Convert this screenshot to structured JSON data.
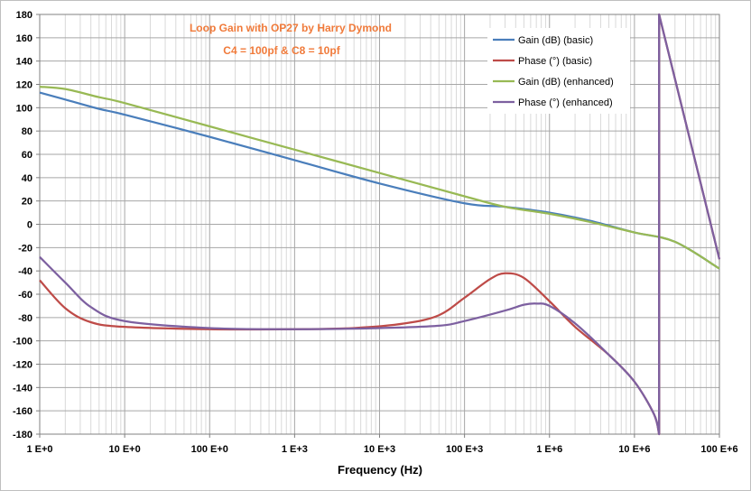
{
  "chart_data": {
    "type": "line",
    "title": "Loop Gain with OP27 by Harry Dymond",
    "subtitle": "C4 = 100pf & C8 = 10pf",
    "xlabel": "Frequency (Hz)",
    "ylabel": "",
    "xscale": "log",
    "xlim": [
      1,
      100000000
    ],
    "ylim": [
      -180,
      180
    ],
    "y_ticks": [
      180,
      160,
      140,
      120,
      100,
      80,
      60,
      40,
      20,
      0,
      -20,
      -40,
      -60,
      -80,
      -100,
      -120,
      -140,
      -160,
      -180
    ],
    "x_ticks": [
      {
        "value": 1,
        "label": "1 E+0"
      },
      {
        "value": 10,
        "label": "10 E+0"
      },
      {
        "value": 100,
        "label": "100 E+0"
      },
      {
        "value": 1000,
        "label": "1 E+3"
      },
      {
        "value": 10000,
        "label": "10 E+3"
      },
      {
        "value": 100000,
        "label": "100 E+3"
      },
      {
        "value": 1000000,
        "label": "1 E+6"
      },
      {
        "value": 10000000,
        "label": "10 E+6"
      },
      {
        "value": 100000000,
        "label": "100 E+6"
      }
    ],
    "grid": true,
    "legend_position": "top-right",
    "series": [
      {
        "name": "Gain (dB) (basic)",
        "color": "#4a7ebb",
        "points": [
          [
            1,
            113
          ],
          [
            2,
            107
          ],
          [
            5,
            99
          ],
          [
            10,
            94
          ],
          [
            100,
            75
          ],
          [
            1000,
            55
          ],
          [
            10000,
            35
          ],
          [
            100000,
            18
          ],
          [
            300000,
            15
          ],
          [
            1000000,
            10
          ],
          [
            3000000,
            3
          ],
          [
            10000000,
            -7
          ],
          [
            30000000,
            -15
          ],
          [
            100000000,
            -38
          ]
        ]
      },
      {
        "name": "Phase (°) (basic)",
        "color": "#be4b48",
        "points": [
          [
            1,
            -48
          ],
          [
            2,
            -72
          ],
          [
            4,
            -84
          ],
          [
            10,
            -88
          ],
          [
            100,
            -90
          ],
          [
            1000,
            -90
          ],
          [
            5000,
            -89
          ],
          [
            20000,
            -85
          ],
          [
            50000,
            -78
          ],
          [
            100000,
            -63
          ],
          [
            200000,
            -47
          ],
          [
            300000,
            -42
          ],
          [
            500000,
            -46
          ],
          [
            1000000,
            -66
          ],
          [
            2000000,
            -88
          ],
          [
            5000000,
            -112
          ],
          [
            10000000,
            -135
          ],
          [
            17000000,
            -163
          ],
          [
            19500000,
            -180
          ],
          [
            19500000,
            180
          ],
          [
            100000000,
            -30
          ]
        ]
      },
      {
        "name": "Gain (dB) (enhanced)",
        "color": "#98b954",
        "points": [
          [
            1,
            118
          ],
          [
            2,
            116
          ],
          [
            5,
            109
          ],
          [
            10,
            104
          ],
          [
            100,
            84
          ],
          [
            1000,
            64
          ],
          [
            10000,
            44
          ],
          [
            100000,
            24
          ],
          [
            300000,
            15
          ],
          [
            1000000,
            9
          ],
          [
            3000000,
            2
          ],
          [
            10000000,
            -7
          ],
          [
            30000000,
            -15
          ],
          [
            100000000,
            -38
          ]
        ]
      },
      {
        "name": "Phase (°) (enhanced)",
        "color": "#7d60a0",
        "points": [
          [
            1,
            -28
          ],
          [
            2,
            -50
          ],
          [
            4,
            -71
          ],
          [
            10,
            -83
          ],
          [
            100,
            -89
          ],
          [
            1000,
            -90
          ],
          [
            10000,
            -89
          ],
          [
            50000,
            -87
          ],
          [
            100000,
            -83
          ],
          [
            300000,
            -74
          ],
          [
            500000,
            -69
          ],
          [
            700000,
            -68
          ],
          [
            1000000,
            -70
          ],
          [
            2000000,
            -85
          ],
          [
            5000000,
            -112
          ],
          [
            10000000,
            -135
          ],
          [
            17000000,
            -163
          ],
          [
            19500000,
            -180
          ],
          [
            19500000,
            180
          ],
          [
            100000000,
            -30
          ]
        ]
      }
    ]
  }
}
